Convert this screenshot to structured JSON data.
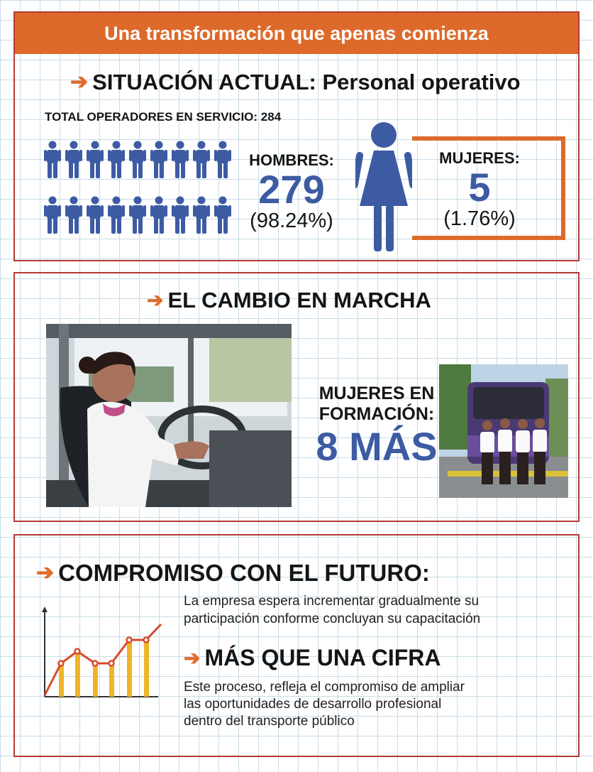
{
  "colors": {
    "accent_orange": "#dd6a2b",
    "panel_border": "#b23b34",
    "figure_blue": "#3d5ba3",
    "bar_yellow": "#efb429",
    "line_red": "#d64b2c"
  },
  "banner": {
    "title": "Una transformación que apenas comienza"
  },
  "situacion": {
    "heading": "SITUACIÓN ACTUAL: Personal operativo",
    "total_label": "TOTAL OPERADORES EN SERVICIO: 284",
    "men_label": "HOMBRES:",
    "men_count": "279",
    "men_pct": "(98.24%)",
    "women_label": "MUJERES:",
    "women_count": "5",
    "women_pct": "(1.76%)",
    "male_icon": "male-person-icon",
    "female_icon": "female-person-icon"
  },
  "cambio": {
    "heading": "EL CAMBIO EN MARCHA",
    "training_label_line1": "MUJERES EN",
    "training_label_line2": "FORMACIÓN:",
    "training_value": "8 MÁS"
  },
  "compromiso": {
    "heading": "COMPROMISO CON EL FUTURO:",
    "text_line1": "La empresa espera incrementar gradualmente su",
    "text_line2": "participación conforme concluyan su capacitación",
    "sub_heading": "MÁS QUE UNA CIFRA",
    "sub_line1": "Este proceso, refleja el compromiso de ampliar",
    "sub_line2": "las oportunidades de desarrollo profesional",
    "sub_line3": "dentro del transporte público",
    "chart_icon": "growth-chart-icon"
  }
}
